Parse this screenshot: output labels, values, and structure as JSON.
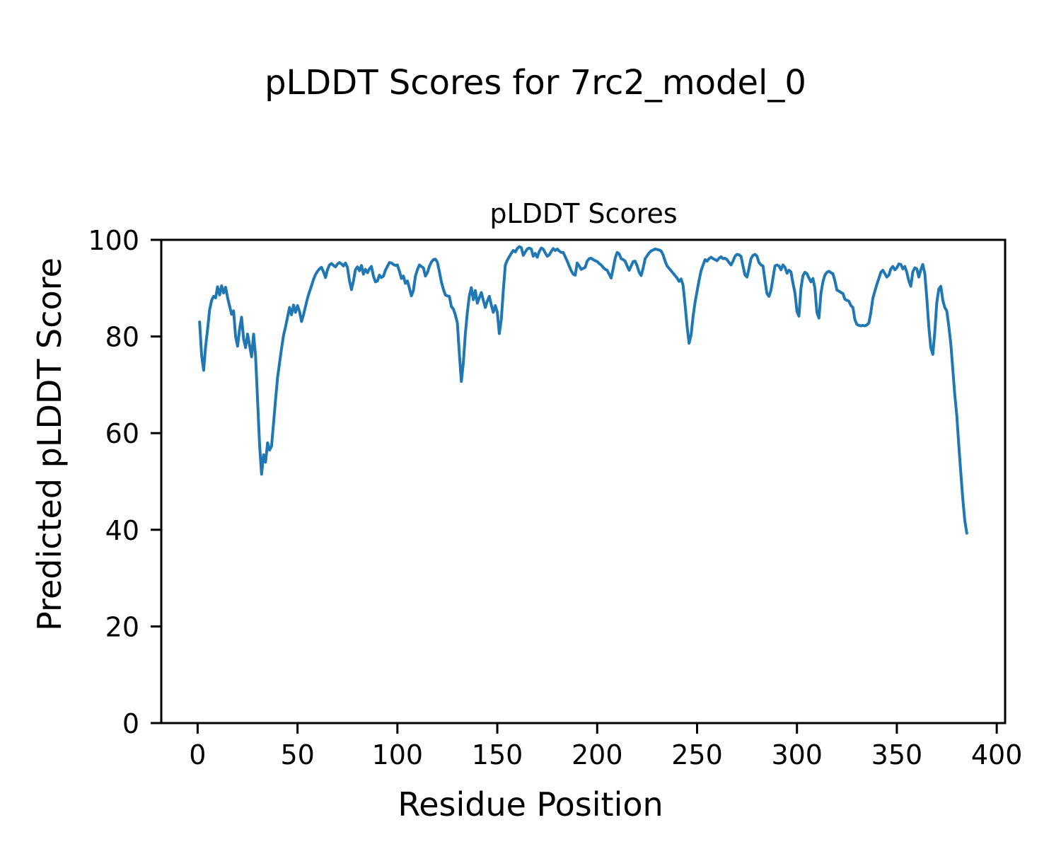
{
  "figure": {
    "suptitle": "pLDDT Scores for 7rc2_model_0",
    "background": "#ffffff"
  },
  "axes": {
    "title": "pLDDT Scores",
    "xlabel": "Residue Position",
    "ylabel": "Predicted pLDDT Score"
  },
  "chart_data": {
    "type": "line",
    "title": "pLDDT Scores",
    "suptitle": "pLDDT Scores for 7rc2_model_0",
    "xlabel": "Residue Position",
    "ylabel": "Predicted pLDDT Score",
    "xlim": [
      -18.2,
      404.2
    ],
    "ylim": [
      0,
      100
    ],
    "xticks": [
      0,
      50,
      100,
      150,
      200,
      250,
      300,
      350,
      400
    ],
    "yticks": [
      0,
      20,
      40,
      60,
      80,
      100
    ],
    "grid": false,
    "legend": null,
    "line_color": "#1f77b4",
    "line_width": 4,
    "x_start": 1,
    "x_step": 1,
    "series": [
      {
        "name": "pLDDT",
        "values": [
          83.0,
          76.0,
          73.0,
          78.0,
          81.5,
          85.5,
          87.5,
          88.3,
          88.0,
          90.3,
          88.6,
          90.5,
          89.0,
          90.2,
          88.0,
          86.3,
          84.6,
          85.3,
          80.0,
          78.0,
          81.5,
          84.0,
          79.5,
          77.7,
          80.5,
          78.2,
          75.8,
          80.5,
          76.0,
          67.0,
          57.5,
          51.5,
          55.5,
          54.0,
          58.0,
          56.5,
          57.3,
          62.0,
          67.0,
          71.5,
          74.5,
          77.5,
          80.2,
          82.0,
          84.0,
          86.0,
          84.5,
          86.5,
          85.0,
          86.4,
          85.2,
          83.1,
          84.5,
          86.2,
          87.9,
          89.3,
          90.5,
          91.8,
          92.8,
          93.5,
          94.0,
          94.3,
          93.4,
          92.2,
          93.8,
          94.8,
          95.1,
          94.7,
          94.4,
          95.0,
          95.3,
          95.0,
          94.6,
          95.2,
          94.3,
          91.5,
          89.7,
          91.5,
          93.8,
          94.4,
          93.6,
          94.7,
          92.9,
          93.9,
          93.2,
          94.0,
          94.5,
          92.5,
          91.3,
          91.5,
          92.7,
          92.2,
          92.5,
          93.7,
          94.5,
          95.3,
          95.2,
          94.9,
          94.7,
          94.8,
          93.5,
          92.0,
          92.5,
          91.0,
          91.5,
          90.0,
          88.4,
          89.5,
          92.5,
          93.8,
          94.8,
          94.5,
          94.2,
          92.5,
          93.2,
          94.5,
          95.4,
          95.9,
          96.0,
          95.4,
          93.5,
          91.3,
          89.8,
          88.6,
          88.4,
          88.3,
          86.2,
          85.7,
          84.5,
          82.8,
          76.5,
          70.7,
          74.5,
          80.6,
          85.0,
          88.4,
          90.1,
          87.6,
          89.5,
          86.9,
          88.0,
          89.1,
          87.5,
          86.0,
          87.3,
          88.3,
          86.5,
          85.0,
          86.4,
          85.0,
          80.6,
          83.5,
          89.4,
          94.8,
          95.8,
          96.5,
          97.2,
          97.8,
          97.5,
          98.2,
          98.6,
          98.4,
          96.8,
          97.5,
          98.1,
          98.3,
          98.1,
          96.6,
          97.2,
          96.4,
          97.6,
          98.3,
          98.1,
          97.3,
          96.6,
          96.9,
          97.6,
          98.2,
          97.8,
          98.1,
          97.7,
          97.4,
          97.4,
          96.5,
          95.6,
          94.6,
          93.6,
          92.9,
          92.7,
          95.2,
          94.6,
          93.9,
          94.1,
          94.3,
          95.6,
          96.1,
          96.2,
          95.9,
          95.7,
          95.5,
          95.1,
          94.8,
          94.3,
          93.9,
          93.7,
          92.9,
          92.1,
          94.1,
          96.2,
          97.4,
          97.1,
          96.1,
          95.9,
          95.6,
          94.6,
          93.7,
          94.6,
          95.5,
          95.6,
          94.6,
          93.3,
          92.6,
          94.1,
          96.1,
          96.7,
          97.3,
          97.7,
          97.9,
          98.1,
          98.0,
          97.9,
          97.7,
          96.9,
          95.6,
          94.6,
          94.1,
          93.6,
          93.1,
          92.6,
          92.1,
          91.4,
          91.9,
          90.6,
          86.6,
          82.1,
          78.6,
          80.3,
          84.1,
          87.1,
          89.4,
          91.6,
          93.6,
          94.8,
          95.9,
          95.6,
          96.1,
          96.4,
          96.1,
          95.9,
          95.7,
          96.2,
          96.5,
          96.1,
          96.2,
          95.9,
          95.3,
          94.8,
          95.6,
          96.6,
          97.0,
          96.9,
          96.6,
          94.6,
          92.7,
          92.3,
          94.1,
          96.1,
          96.8,
          97.0,
          96.6,
          95.3,
          94.8,
          94.6,
          91.6,
          88.9,
          88.3,
          89.6,
          92.1,
          94.6,
          94.8,
          94.6,
          93.8,
          94.8,
          94.3,
          93.1,
          93.7,
          93.4,
          91.0,
          89.0,
          85.2,
          84.2,
          90.0,
          92.6,
          93.3,
          93.0,
          92.1,
          91.3,
          92.0,
          90.0,
          85.0,
          83.8,
          88.9,
          91.3,
          92.7,
          93.3,
          93.5,
          93.2,
          93.0,
          91.5,
          89.6,
          89.4,
          89.1,
          88.9,
          87.7,
          87.5,
          87.3,
          86.4,
          86.0,
          83.5,
          82.5,
          82.3,
          82.2,
          82.3,
          82.2,
          82.4,
          82.8,
          85.0,
          87.9,
          89.4,
          90.8,
          92.0,
          93.3,
          93.7,
          93.0,
          92.3,
          92.7,
          94.0,
          94.5,
          93.8,
          94.2,
          95.0,
          94.9,
          94.0,
          94.5,
          93.3,
          91.5,
          90.4,
          93.4,
          94.2,
          94.0,
          92.3,
          93.8,
          94.9,
          93.0,
          87.9,
          82.1,
          77.7,
          76.3,
          81.0,
          87.0,
          89.8,
          90.4,
          87.5,
          86.0,
          85.3,
          82.1,
          78.5,
          73.3,
          68.0,
          63.6,
          57.5,
          51.9,
          46.5,
          42.0,
          39.3
        ]
      }
    ]
  }
}
